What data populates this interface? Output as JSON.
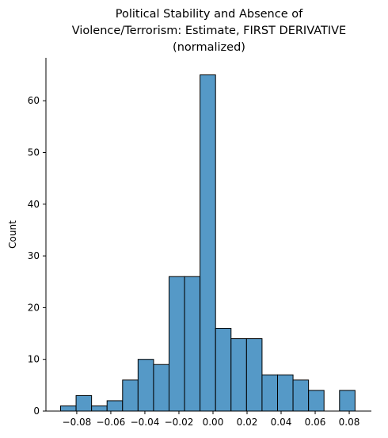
{
  "chart_data": {
    "type": "histogram",
    "title": [
      "Political Stability and Absence of",
      "Violence/Terrorism: Estimate, FIRST DERIVATIVE",
      "(normalized)"
    ],
    "ylabel": "Count",
    "bins": [
      -0.0895,
      -0.0804,
      -0.0713,
      -0.0622,
      -0.0531,
      -0.044,
      -0.0349,
      -0.0258,
      -0.0167,
      -0.0076,
      0.0015,
      0.0106,
      0.0197,
      0.0288,
      0.0379,
      0.047,
      0.0561,
      0.0652,
      0.0743,
      0.0834
    ],
    "values": [
      1,
      3,
      1,
      2,
      6,
      10,
      9,
      26,
      26,
      65,
      16,
      14,
      14,
      7,
      7,
      6,
      4,
      0,
      4
    ],
    "color": "#5599c7",
    "xlim": [
      -0.0981,
      0.093
    ],
    "ylim": [
      0,
      68.3
    ],
    "xticks": [
      {
        "value": -0.08,
        "label": "−0.08"
      },
      {
        "value": -0.06,
        "label": "−0.06"
      },
      {
        "value": -0.04,
        "label": "−0.04"
      },
      {
        "value": -0.02,
        "label": "−0.02"
      },
      {
        "value": 0,
        "label": "0.00"
      },
      {
        "value": 0.02,
        "label": "0.02"
      },
      {
        "value": 0.04,
        "label": "0.04"
      },
      {
        "value": 0.06,
        "label": "0.06"
      },
      {
        "value": 0.08,
        "label": "0.08"
      }
    ],
    "yticks": [
      0,
      10,
      20,
      30,
      40,
      50,
      60
    ]
  }
}
